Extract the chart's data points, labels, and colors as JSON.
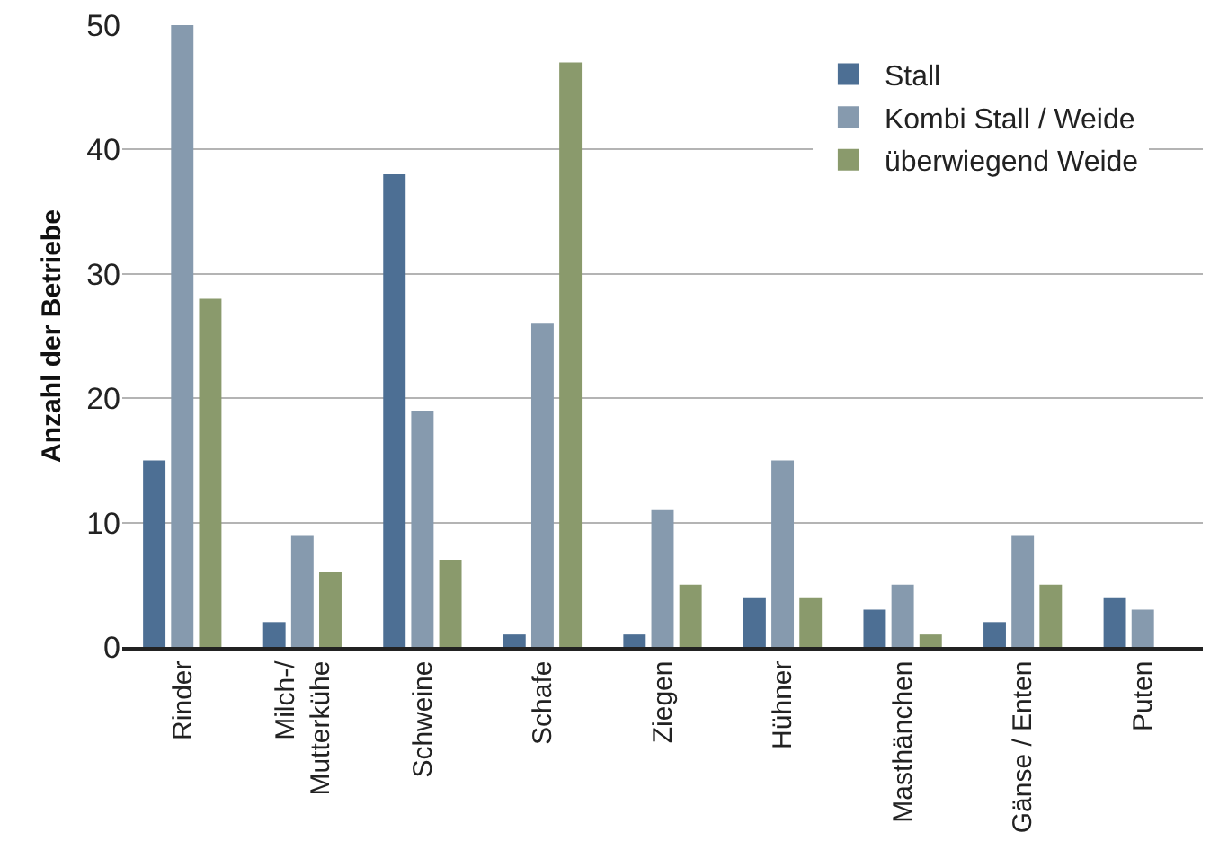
{
  "chart_data": {
    "type": "bar",
    "ylabel": "Anzahl der Betriebe",
    "categories": [
      "Rinder",
      "Milch-/\nMutterkühe",
      "Schweine",
      "Schafe",
      "Ziegen",
      "Hühner",
      "Masthänchen",
      "Gänse / Enten",
      "Puten"
    ],
    "series": [
      {
        "name": "Stall",
        "color": "#4d6f94",
        "values": [
          15,
          2,
          38,
          1,
          1,
          4,
          3,
          2,
          4
        ]
      },
      {
        "name": "Kombi Stall / Weide",
        "color": "#869aae",
        "values": [
          50,
          9,
          19,
          26,
          11,
          15,
          5,
          9,
          3
        ]
      },
      {
        "name": "überwiegend Weide",
        "color": "#8a9a6c",
        "values": [
          28,
          6,
          7,
          47,
          5,
          4,
          1,
          5,
          null
        ]
      }
    ],
    "ylim": [
      0,
      50
    ],
    "yticks": [
      0,
      10,
      20,
      30,
      40,
      50
    ],
    "grid": "y",
    "legend": "top right"
  }
}
